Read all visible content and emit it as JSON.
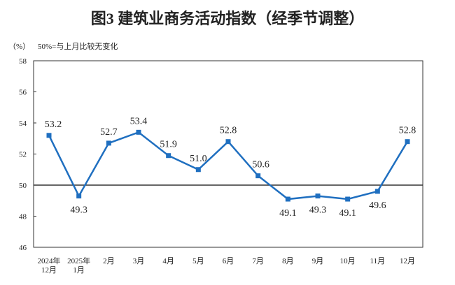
{
  "chart_data": {
    "type": "line",
    "title": "图3  建筑业商务活动指数（经季节调整）",
    "unit_label": "（%）",
    "note": "50%=与上月比较无变化",
    "categories": [
      [
        "2024年",
        "12月"
      ],
      [
        "2025年",
        "1月"
      ],
      "2月",
      "3月",
      "4月",
      "5月",
      "6月",
      "7月",
      "8月",
      "9月",
      "10月",
      "11月",
      "12月"
    ],
    "values": [
      53.2,
      49.3,
      52.7,
      53.4,
      51.9,
      51.0,
      52.8,
      50.6,
      49.1,
      49.3,
      49.1,
      49.6,
      52.8
    ],
    "value_labels": [
      "53.2",
      "49.3",
      "52.7",
      "53.4",
      "51.9",
      "51.0",
      "52.8",
      "50.6",
      "49.1",
      "49.3",
      "49.1",
      "49.6",
      "52.8"
    ],
    "color": "#1f6fc0",
    "ylim": [
      46,
      58
    ],
    "yticks": [
      46,
      48,
      50,
      52,
      54,
      56,
      58
    ],
    "reference_line": 50
  }
}
